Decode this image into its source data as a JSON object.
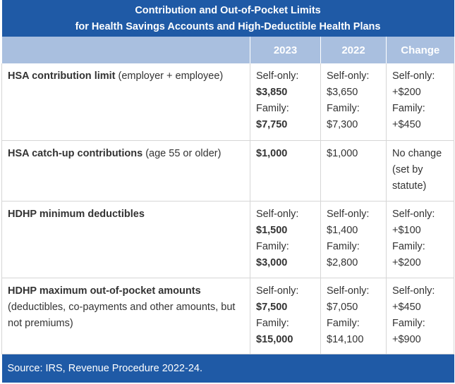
{
  "title_line1": "Contribution and Out-of-Pocket Limits",
  "title_line2": "for Health Savings Accounts and High-Deductible Health Plans",
  "columns": [
    "",
    "2023",
    "2022",
    "Change"
  ],
  "rows": [
    {
      "label_bold": "HSA contribution limit",
      "label_rest": " (employer + employee)",
      "label_extra": "",
      "y2023": [
        "Self-only:",
        "$3,850",
        "Family:",
        "$7,750"
      ],
      "y2022": [
        "Self-only:",
        "$3,650",
        "Family:",
        "$7,300"
      ],
      "change": [
        "Self-only:",
        "+$200",
        "Family:",
        "+$450"
      ]
    },
    {
      "label_bold": "HSA catch-up contributions",
      "label_rest": " (age 55 or older)",
      "label_extra": "",
      "y2023": [
        "$1,000"
      ],
      "y2022": [
        "$1,000"
      ],
      "change": [
        "No change",
        "(set by",
        "statute)"
      ]
    },
    {
      "label_bold": "HDHP minimum deductibles",
      "label_rest": "",
      "label_extra": "",
      "y2023": [
        "Self-only:",
        "$1,500",
        "Family:",
        "$3,000"
      ],
      "y2022": [
        "Self-only:",
        "$1,400",
        "Family:",
        "$2,800"
      ],
      "change": [
        "Self-only:",
        "+$100",
        "Family:",
        "+$200"
      ]
    },
    {
      "label_bold": "HDHP maximum out-of-pocket amounts",
      "label_rest": "",
      "label_extra": "(deductibles, co-payments and other amounts, but not premiums)",
      "y2023": [
        "Self-only:",
        "$7,500",
        "Family:",
        "$15,000"
      ],
      "y2022": [
        "Self-only:",
        "$7,050",
        "Family:",
        "$14,100"
      ],
      "change": [
        "Self-only:",
        "+$450",
        "Family:",
        "+$900"
      ]
    }
  ],
  "source": "Source: IRS, Revenue Procedure 2022-24.",
  "colors": {
    "header_blue": "#1f5aa6",
    "column_header": "#a9bfdf",
    "border": "#d6d6d6"
  }
}
